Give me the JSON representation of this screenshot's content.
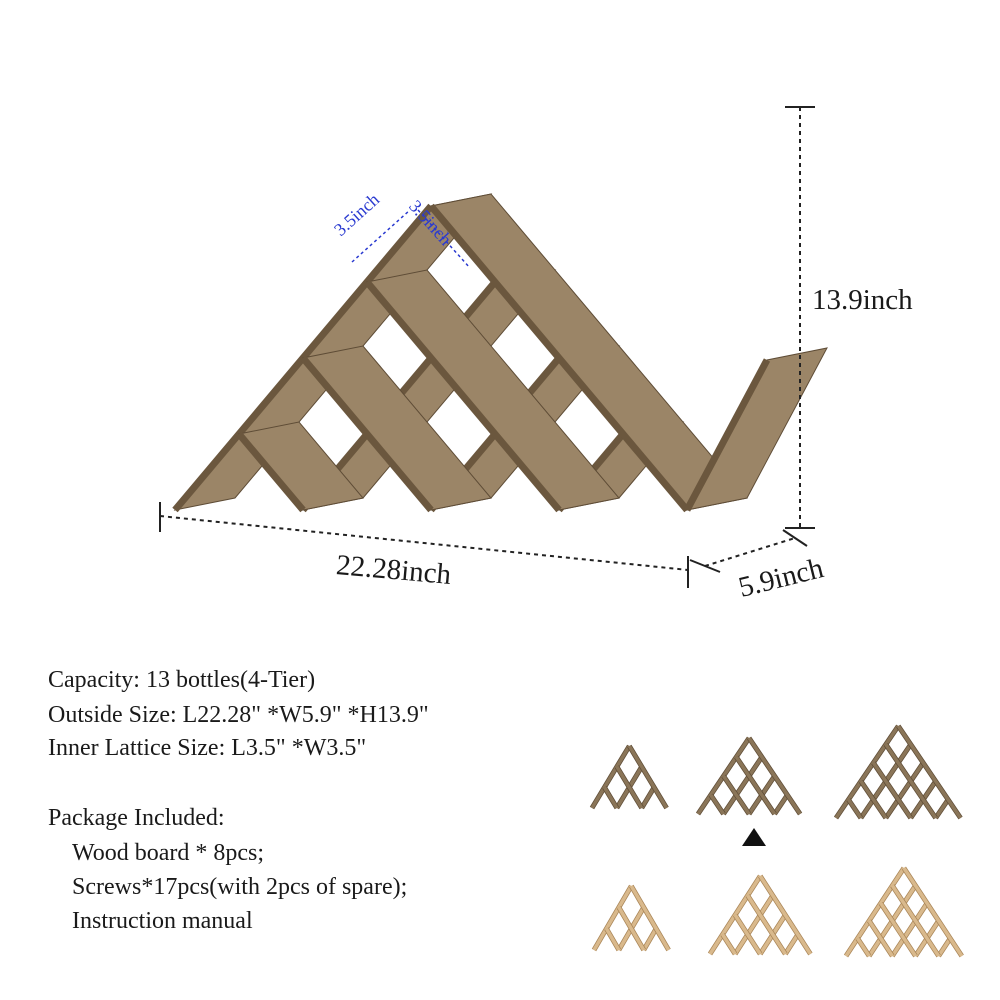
{
  "dimensions": {
    "height": "13.9inch",
    "length": "22.28inch",
    "depth": "5.9inch",
    "inner_left": "3.5inch",
    "inner_right": "3.5inch"
  },
  "specs": {
    "capacity": "Capacity:  13 bottles(4-Tier)",
    "outside_size": "Outside Size:  L22.28\" *W5.9\" *H13.9\"",
    "inner_size": "Inner Lattice Size:  L3.5\" *W3.5\""
  },
  "package": {
    "heading": "Package Included:",
    "items": [
      "Wood board * 8pcs;",
      "Screws*17pcs(with 2pcs of spare);",
      "Instruction manual"
    ]
  },
  "colors": {
    "dark_wood": "#8a7558",
    "dark_wood_edge": "#5e4c36",
    "light_wood": "#d9b98c",
    "light_wood_edge": "#a88456",
    "dimension_line": "#222222",
    "inner_dimension": "#2a3ad0"
  },
  "variants": {
    "selected_index": 1,
    "rows": [
      {
        "finish": "dark",
        "tiers": [
          3,
          4,
          5
        ]
      },
      {
        "finish": "light",
        "tiers": [
          3,
          4,
          5
        ]
      }
    ]
  }
}
